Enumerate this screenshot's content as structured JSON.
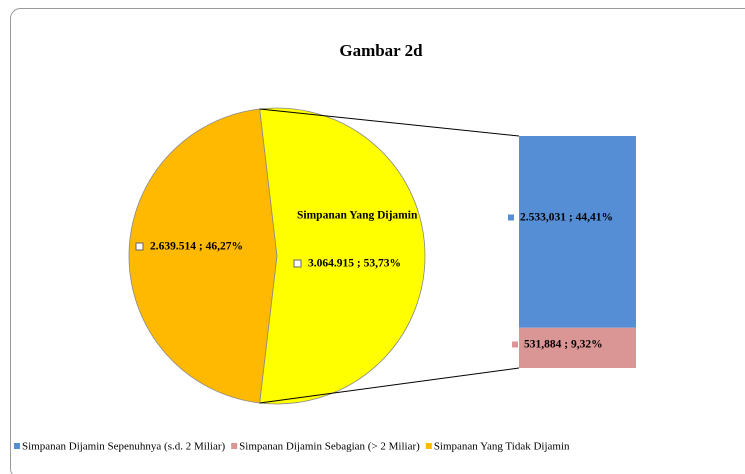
{
  "chart_data": {
    "type": "pie-of-bar",
    "title": "Gambar 2d",
    "pie": {
      "categories": [
        "Simpanan Yang Tidak Dijamin",
        "Simpanan Yang Dijamin"
      ],
      "values": [
        2639514,
        3064915
      ],
      "value_labels": [
        "2.639.514 ; 46,27%",
        "3.064.915 ; 53,73%"
      ],
      "colors": [
        "#ffb900",
        "#ffff00"
      ]
    },
    "bar": {
      "categories": [
        "Simpanan Dijamin Sepenuhnya (s.d. 2 Miliar)",
        "Simpanan Dijamin Sebagian (> 2 Miliar)"
      ],
      "values": [
        2533031,
        531884
      ],
      "value_labels": [
        "2.533,031 ; 44,41%",
        "531,884 ; 9,32%"
      ],
      "colors": [
        "#558ed5",
        "#d99694"
      ]
    }
  }
}
